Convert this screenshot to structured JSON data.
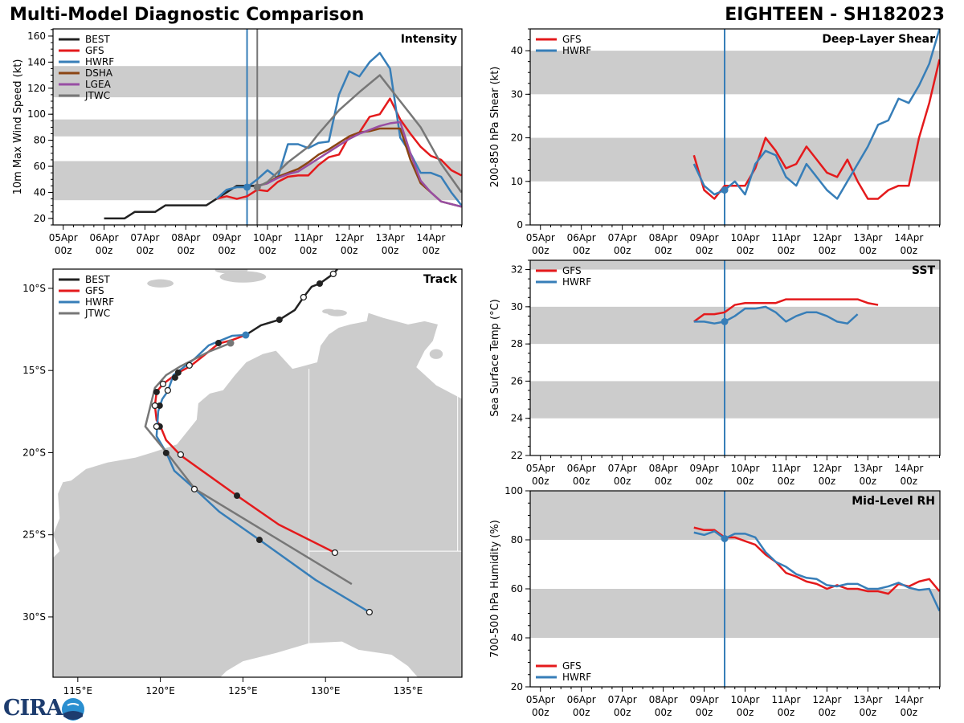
{
  "header": {
    "title": "Multi-Model Diagnostic Comparison",
    "storm": "EIGHTEEN - SH182023"
  },
  "logo": {
    "text": "CIRA"
  },
  "x_ticks": [
    {
      "d": 0,
      "l1": "05Apr",
      "l2": "00z"
    },
    {
      "d": 1,
      "l1": "06Apr",
      "l2": "00z"
    },
    {
      "d": 2,
      "l1": "07Apr",
      "l2": "00z"
    },
    {
      "d": 3,
      "l1": "08Apr",
      "l2": "00z"
    },
    {
      "d": 4,
      "l1": "09Apr",
      "l2": "00z"
    },
    {
      "d": 5,
      "l1": "10Apr",
      "l2": "00z"
    },
    {
      "d": 6,
      "l1": "11Apr",
      "l2": "00z"
    },
    {
      "d": 7,
      "l1": "12Apr",
      "l2": "00z"
    },
    {
      "d": 8,
      "l1": "13Apr",
      "l2": "00z"
    },
    {
      "d": 9,
      "l1": "14Apr",
      "l2": "00z"
    }
  ],
  "colors": {
    "BEST": "#222222",
    "GFS": "#e41a1c",
    "HWRF": "#377eb8",
    "DSHA": "#8b4513",
    "LGEA": "#984ea3",
    "JTWC": "#777777",
    "band": "#cccccc",
    "land": "#cccccc"
  },
  "chart_data": [
    {
      "id": "intensity",
      "type": "line",
      "title": "Intensity",
      "ylabel": "10m Max Wind Speed (kt)",
      "x_units": "days since 05Apr 00z",
      "xlim": [
        -0.25,
        9.76
      ],
      "ylim": [
        15,
        165.5
      ],
      "yticks": [
        20,
        40,
        60,
        80,
        100,
        120,
        140,
        160
      ],
      "yminor": 5,
      "bands": [
        [
          34,
          64
        ],
        [
          83,
          96
        ],
        [
          113,
          137
        ]
      ],
      "vlines": [
        {
          "x": 4.5,
          "series": "HWRF"
        },
        {
          "x": 4.75,
          "series": "JTWC"
        }
      ],
      "legend": "top-left",
      "series": [
        {
          "name": "BEST",
          "x": [
            1,
            1.5,
            1.75,
            2.25,
            2.5,
            3.5,
            3.75,
            4,
            4.25,
            4.5,
            4.75
          ],
          "y": [
            20,
            20,
            25,
            25,
            30,
            30,
            35,
            40,
            45,
            45,
            45
          ]
        },
        {
          "name": "GFS",
          "x": [
            3.75,
            4,
            4.25,
            4.5,
            4.75,
            5,
            5.25,
            5.5,
            5.75,
            6,
            6.25,
            6.5,
            6.75,
            7,
            7.25,
            7.5,
            7.75,
            8,
            8.25,
            8.5,
            8.75,
            9,
            9.25,
            9.5,
            9.75
          ],
          "y": [
            35,
            37,
            35,
            37,
            42,
            41,
            48,
            52,
            53,
            53,
            61,
            67,
            69,
            83,
            86,
            98,
            100,
            112,
            96,
            85,
            75,
            68,
            65,
            57,
            53
          ]
        },
        {
          "name": "HWRF",
          "x": [
            3.75,
            4,
            4.25,
            4.5,
            4.75,
            5,
            5.25,
            5.5,
            5.75,
            6,
            6.25,
            6.5,
            6.75,
            7,
            7.25,
            7.5,
            7.75,
            8,
            8.25,
            8.5,
            8.75,
            9,
            9.25,
            9.5,
            9.75
          ],
          "y": [
            35,
            42,
            44,
            44,
            50,
            57,
            51,
            77,
            77,
            74,
            78,
            79,
            115,
            133,
            129,
            140,
            147,
            135,
            82,
            70,
            55,
            55,
            52,
            40,
            30
          ]
        },
        {
          "name": "DSHA",
          "x": [
            4.75,
            5,
            5.25,
            5.5,
            5.75,
            6,
            6.25,
            6.5,
            6.75,
            7,
            7.25,
            7.5,
            7.75,
            8,
            8.25,
            8.5,
            8.75,
            9,
            9.25,
            9.5,
            9.75
          ],
          "y": [
            45,
            47,
            52,
            55,
            58,
            63,
            69,
            73,
            78,
            83,
            86,
            87,
            89,
            89,
            89,
            65,
            47,
            40,
            33,
            31,
            29
          ]
        },
        {
          "name": "LGEA",
          "x": [
            4.75,
            5,
            5.25,
            5.5,
            5.75,
            6,
            6.25,
            6.5,
            6.75,
            7,
            7.25,
            7.5,
            7.75,
            8,
            8.25,
            8.5,
            8.75,
            9,
            9.25,
            9.5,
            9.75
          ],
          "y": [
            45,
            47,
            51,
            54,
            56,
            61,
            66,
            71,
            76,
            81,
            85,
            88,
            91,
            93,
            94,
            70,
            49,
            40,
            33,
            31,
            29
          ]
        },
        {
          "name": "JTWC",
          "x": [
            4.75,
            5,
            5.5,
            6,
            6.25,
            6.75,
            7.25,
            7.75,
            8.25,
            8.75,
            9.25,
            9.75
          ],
          "y": [
            44,
            48,
            63,
            75,
            85,
            103,
            117,
            130,
            110,
            90,
            62,
            40
          ]
        }
      ]
    },
    {
      "id": "shear",
      "type": "line",
      "title": "Deep-Layer Shear",
      "ylabel": "200-850 hPa Shear (kt)",
      "xlim": [
        -0.25,
        9.76
      ],
      "ylim": [
        0,
        45
      ],
      "yticks": [
        0,
        10,
        20,
        30,
        40
      ],
      "yminor": 2.5,
      "bands": [
        [
          10,
          20
        ],
        [
          30,
          40
        ]
      ],
      "vlines": [
        {
          "x": 4.5,
          "series": "HWRF"
        }
      ],
      "legend": "top-left",
      "series": [
        {
          "name": "GFS",
          "x": [
            3.75,
            4,
            4.25,
            4.5,
            4.75,
            5,
            5.25,
            5.5,
            5.75,
            6,
            6.25,
            6.5,
            6.75,
            7,
            7.25,
            7.5,
            7.75,
            8,
            8.25,
            8.5,
            8.75,
            9,
            9.25,
            9.5,
            9.75
          ],
          "y": [
            16,
            8,
            6,
            9,
            9,
            9,
            13,
            20,
            17,
            13,
            14,
            18,
            15,
            12,
            11,
            15,
            10,
            6,
            6,
            8,
            9,
            9,
            20,
            28,
            38
          ]
        },
        {
          "name": "HWRF",
          "x": [
            3.75,
            4,
            4.25,
            4.5,
            4.75,
            5,
            5.25,
            5.5,
            5.75,
            6,
            6.25,
            6.5,
            6.75,
            7,
            7.25,
            7.5,
            7.75,
            8,
            8.25,
            8.5,
            8.75,
            9,
            9.25,
            9.5,
            9.75
          ],
          "y": [
            14,
            9,
            7,
            8,
            10,
            7,
            14,
            17,
            16,
            11,
            9,
            14,
            11,
            8,
            6,
            10,
            14,
            18,
            23,
            24,
            29,
            28,
            32,
            37,
            45
          ]
        }
      ]
    },
    {
      "id": "sst",
      "type": "line",
      "title": "SST",
      "ylabel": "Sea Surface Temp (°C)",
      "xlim": [
        -0.25,
        9.76
      ],
      "ylim": [
        22,
        32.5
      ],
      "yticks": [
        22,
        24,
        26,
        28,
        30,
        32
      ],
      "yminor": 0.5,
      "bands": [
        [
          24,
          26
        ],
        [
          28,
          30
        ],
        [
          32,
          33
        ]
      ],
      "vlines": [
        {
          "x": 4.5,
          "series": "HWRF"
        }
      ],
      "legend": "top-left",
      "series": [
        {
          "name": "GFS",
          "x": [
            3.75,
            4,
            4.25,
            4.5,
            4.75,
            5,
            5.25,
            5.5,
            5.75,
            6,
            6.25,
            6.5,
            6.75,
            7,
            7.25,
            7.5,
            7.75,
            8,
            8.25
          ],
          "y": [
            29.2,
            29.6,
            29.6,
            29.7,
            30.1,
            30.2,
            30.2,
            30.2,
            30.2,
            30.4,
            30.4,
            30.4,
            30.4,
            30.4,
            30.4,
            30.4,
            30.4,
            30.2,
            30.1
          ]
        },
        {
          "name": "HWRF",
          "x": [
            3.75,
            4,
            4.25,
            4.5,
            4.75,
            5,
            5.25,
            5.5,
            5.75,
            6,
            6.25,
            6.5,
            6.75,
            7,
            7.25,
            7.5,
            7.75
          ],
          "y": [
            29.2,
            29.2,
            29.1,
            29.2,
            29.5,
            29.9,
            29.9,
            30.0,
            29.7,
            29.2,
            29.5,
            29.7,
            29.7,
            29.5,
            29.2,
            29.1,
            29.6
          ]
        }
      ]
    },
    {
      "id": "rh",
      "type": "line",
      "title": "Mid-Level RH",
      "ylabel": "700-500 hPa Humidity (%)",
      "xlim": [
        -0.25,
        9.76
      ],
      "ylim": [
        20,
        100
      ],
      "yticks": [
        20,
        40,
        60,
        80,
        100
      ],
      "yminor": 5,
      "bands": [
        [
          40,
          60
        ],
        [
          80,
          100
        ]
      ],
      "vlines": [
        {
          "x": 4.5,
          "series": "HWRF"
        }
      ],
      "legend": "bottom-left",
      "series": [
        {
          "name": "GFS",
          "x": [
            3.75,
            4,
            4.25,
            4.5,
            4.75,
            5,
            5.25,
            5.5,
            5.75,
            6,
            6.25,
            6.5,
            6.75,
            7,
            7.25,
            7.5,
            7.75,
            8,
            8.25,
            8.5,
            8.75,
            9,
            9.25,
            9.5,
            9.75
          ],
          "y": [
            85,
            84,
            84,
            81,
            81,
            79.5,
            78,
            74,
            71,
            66.5,
            65,
            63,
            62,
            60,
            61.5,
            60,
            60,
            59,
            59,
            58,
            62,
            61,
            63,
            64,
            59
          ]
        },
        {
          "name": "HWRF",
          "x": [
            3.75,
            4,
            4.25,
            4.5,
            4.75,
            5,
            5.25,
            5.5,
            5.75,
            6,
            6.25,
            6.5,
            6.75,
            7,
            7.25,
            7.5,
            7.75,
            8,
            8.25,
            8.5,
            8.75,
            9,
            9.25,
            9.5,
            9.75
          ],
          "y": [
            83,
            82,
            83.5,
            80.5,
            82.5,
            82.5,
            81,
            75,
            71,
            69,
            66,
            64.5,
            64,
            61.5,
            61,
            62,
            62,
            60,
            60,
            61,
            62.5,
            60.5,
            59.5,
            60,
            51
          ]
        }
      ]
    },
    {
      "id": "track",
      "type": "scatter",
      "title": "Track",
      "xlim": [
        113.5,
        138.26
      ],
      "ylim": [
        -33.67,
        -8.83
      ],
      "xticks": [
        {
          "v": 115,
          "l": "115°E"
        },
        {
          "v": 120,
          "l": "120°E"
        },
        {
          "v": 125,
          "l": "125°E"
        },
        {
          "v": 130,
          "l": "130°E"
        },
        {
          "v": 135,
          "l": "135°E"
        }
      ],
      "yticks": [
        {
          "v": -10,
          "l": "10°S"
        },
        {
          "v": -15,
          "l": "15°S"
        },
        {
          "v": -20,
          "l": "20°S"
        },
        {
          "v": -25,
          "l": "25°S"
        },
        {
          "v": -30,
          "l": "30°S"
        }
      ],
      "legend": "top-left",
      "series": [
        {
          "name": "BEST",
          "lon": [
            130.72,
            130.47,
            129.65,
            129.16,
            128.67,
            128.14,
            127.21,
            126.09,
            125.17
          ],
          "lat": [
            -8.83,
            -9.12,
            -9.71,
            -9.9,
            -10.54,
            -11.32,
            -11.91,
            -12.25,
            -12.84
          ]
        },
        {
          "name": "GFS",
          "lon": [
            125.17,
            124.39,
            123.52,
            122.79,
            121.81,
            121.08,
            120.16,
            119.77,
            119.67,
            119.77,
            120.01,
            120.35,
            121.23,
            124.64,
            127.17,
            130.57
          ],
          "lat": [
            -12.84,
            -13.13,
            -13.37,
            -13.96,
            -14.74,
            -15.13,
            -15.82,
            -16.31,
            -17.14,
            -18.02,
            -18.41,
            -19.24,
            -20.17,
            -22.62,
            -24.38,
            -26.09
          ]
        },
        {
          "name": "HWRF",
          "lon": [
            125.17,
            124.34,
            122.93,
            122.06,
            120.79,
            120.45,
            120.11,
            119.87,
            119.77,
            120.35,
            120.84,
            122.1,
            123.56,
            126.0,
            129.4,
            132.66
          ],
          "lat": [
            -12.84,
            -12.89,
            -13.47,
            -14.3,
            -15.28,
            -16.26,
            -16.75,
            -17.48,
            -19.0,
            -19.98,
            -21.1,
            -22.22,
            -23.59,
            -25.31,
            -27.75,
            -29.71
          ]
        },
        {
          "name": "JTWC",
          "lon": [
            124.25,
            122.93,
            121.23,
            120.35,
            119.67,
            119.09,
            120.4,
            122.1,
            131.59
          ],
          "lat": [
            -13.33,
            -13.86,
            -14.74,
            -15.28,
            -16.06,
            -18.41,
            -20.02,
            -22.22,
            -28.0
          ]
        }
      ],
      "markers_open": [
        [
          128.67,
          -10.54
        ],
        [
          130.47,
          -9.12
        ],
        [
          121.76,
          -14.69
        ],
        [
          120.16,
          -15.82
        ],
        [
          120.45,
          -16.21
        ],
        [
          119.67,
          -17.14
        ],
        [
          119.77,
          -18.41
        ],
        [
          121.23,
          -20.12
        ],
        [
          122.06,
          -22.22
        ],
        [
          130.57,
          -26.09
        ],
        [
          132.66,
          -29.71
        ]
      ],
      "markers_filled": [
        [
          127.21,
          -11.91
        ],
        [
          129.65,
          -9.71
        ],
        [
          123.52,
          -13.33
        ],
        [
          121.08,
          -15.13
        ],
        [
          120.89,
          -15.43
        ],
        [
          119.77,
          -16.31
        ],
        [
          119.96,
          -17.14
        ],
        [
          119.96,
          -18.41
        ],
        [
          120.35,
          -20.02
        ],
        [
          124.64,
          -22.62
        ],
        [
          126.0,
          -25.31
        ]
      ]
    }
  ]
}
